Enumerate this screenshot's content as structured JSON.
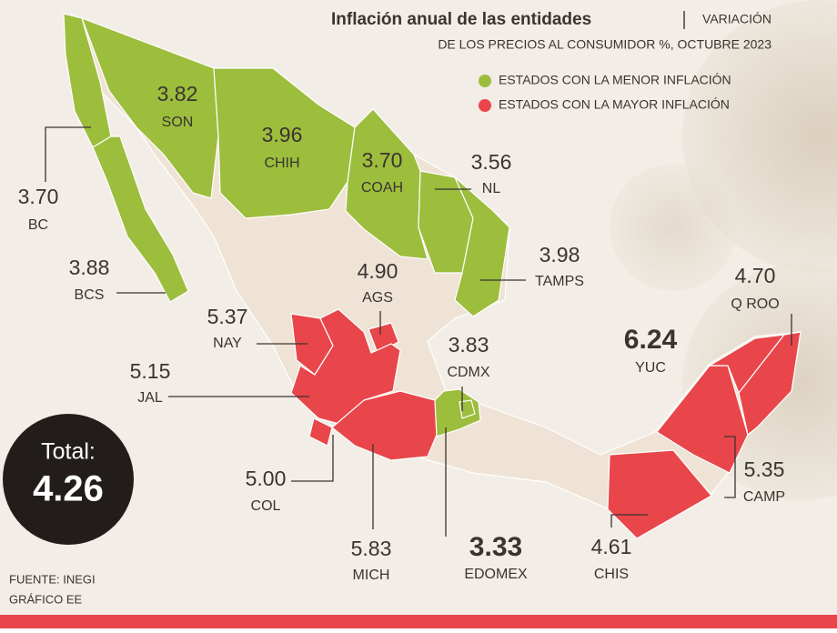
{
  "title": "Inflación anual de las entidades",
  "subtitle": [
    "VARIACIÓN",
    "DE LOS PRECIOS AL CONSUMIDOR %, OCTUBRE 2023"
  ],
  "legend": [
    {
      "label": "ESTADOS CON LA MENOR INFLACIÓN",
      "color": "#9dbd3c"
    },
    {
      "label": "ESTADOS CON LA MAYOR INFLACIÓN",
      "color": "#e8464b"
    }
  ],
  "states": [
    {
      "value": "3.82",
      "name": "SON",
      "group": 0
    },
    {
      "value": "3.96",
      "name": "CHIH",
      "group": 0
    },
    {
      "value": "3.70",
      "name": "COAH",
      "group": 0
    },
    {
      "value": "3.56",
      "name": "NL",
      "group": 0
    },
    {
      "value": "3.98",
      "name": "TAMPS",
      "group": 0
    },
    {
      "value": "3.70",
      "name": "BC",
      "group": 0
    },
    {
      "value": "3.88",
      "name": "BCS",
      "group": 0
    },
    {
      "value": "4.90",
      "name": "AGS",
      "group": 1
    },
    {
      "value": "5.37",
      "name": "NAY",
      "group": 1
    },
    {
      "value": "5.15",
      "name": "JAL",
      "group": 1
    },
    {
      "value": "3.83",
      "name": "CDMX",
      "group": 0
    },
    {
      "value": "6.24",
      "name": "YUC",
      "group": 1
    },
    {
      "value": "4.70",
      "name": "Q ROO",
      "group": 1
    },
    {
      "value": "5.00",
      "name": "COL",
      "group": 1
    },
    {
      "value": "5.35",
      "name": "CAMP",
      "group": 1
    },
    {
      "value": "5.83",
      "name": "MICH",
      "group": 1
    },
    {
      "value": "3.33",
      "name": "EDOMEX",
      "group": 0
    },
    {
      "value": "4.61",
      "name": "CHIS",
      "group": 1
    }
  ],
  "total": {
    "label": "Total:",
    "value": "4.26"
  },
  "source": [
    "FUENTE: INEGI",
    "GRÁFICO EE"
  ]
}
